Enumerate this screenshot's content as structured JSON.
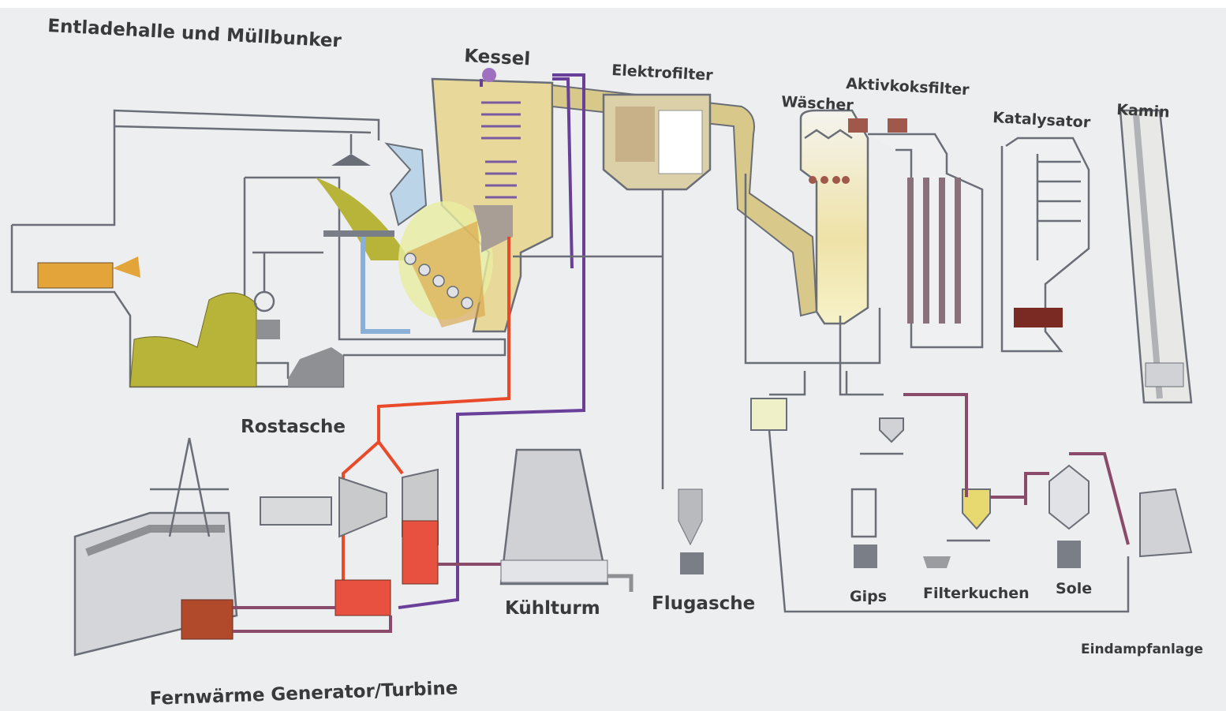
{
  "labels": {
    "bunker": "Entladehalle  und Müllbunker",
    "boiler": "Kessel",
    "electrostatic_filter": "Elektrofilter",
    "scrubber": "Wäscher",
    "activated_coke_filter": "Aktivkoksfilter",
    "catalyst": "Katalysator",
    "chimney": "Kamin",
    "bottom_ash": "Rostasche",
    "cooling_tower": "Kühlturm",
    "fly_ash": "Flugasche",
    "gypsum": "Gips",
    "filter_cake": "Filterkuchen",
    "brine": "Sole",
    "evaporation_plant": "Eindampfanlage",
    "district_heating_generator": "Fernwärme Generator/Turbine"
  }
}
